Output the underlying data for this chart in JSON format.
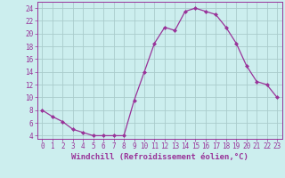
{
  "x": [
    0,
    1,
    2,
    3,
    4,
    5,
    6,
    7,
    8,
    9,
    10,
    11,
    12,
    13,
    14,
    15,
    16,
    17,
    18,
    19,
    20,
    21,
    22,
    23
  ],
  "y": [
    8,
    7,
    6.2,
    5,
    4.5,
    4,
    4,
    4,
    4,
    9.5,
    14,
    18.5,
    21,
    20.5,
    23.5,
    24,
    23.5,
    23,
    21,
    18.5,
    15,
    12.5,
    12,
    10
  ],
  "line_color": "#993399",
  "marker": "D",
  "marker_size": 2,
  "background_color": "#cceeee",
  "grid_color": "#aacccc",
  "xlabel": "Windchill (Refroidissement éolien,°C)",
  "xlabel_color": "#993399",
  "tick_color": "#993399",
  "spine_color": "#993399",
  "ylim": [
    3.5,
    25
  ],
  "yticks": [
    4,
    6,
    8,
    10,
    12,
    14,
    16,
    18,
    20,
    22,
    24
  ],
  "xlim": [
    -0.5,
    23.5
  ],
  "xticks": [
    0,
    1,
    2,
    3,
    4,
    5,
    6,
    7,
    8,
    9,
    10,
    11,
    12,
    13,
    14,
    15,
    16,
    17,
    18,
    19,
    20,
    21,
    22,
    23
  ],
  "xlabel_fontsize": 6.5,
  "tick_fontsize": 5.5
}
